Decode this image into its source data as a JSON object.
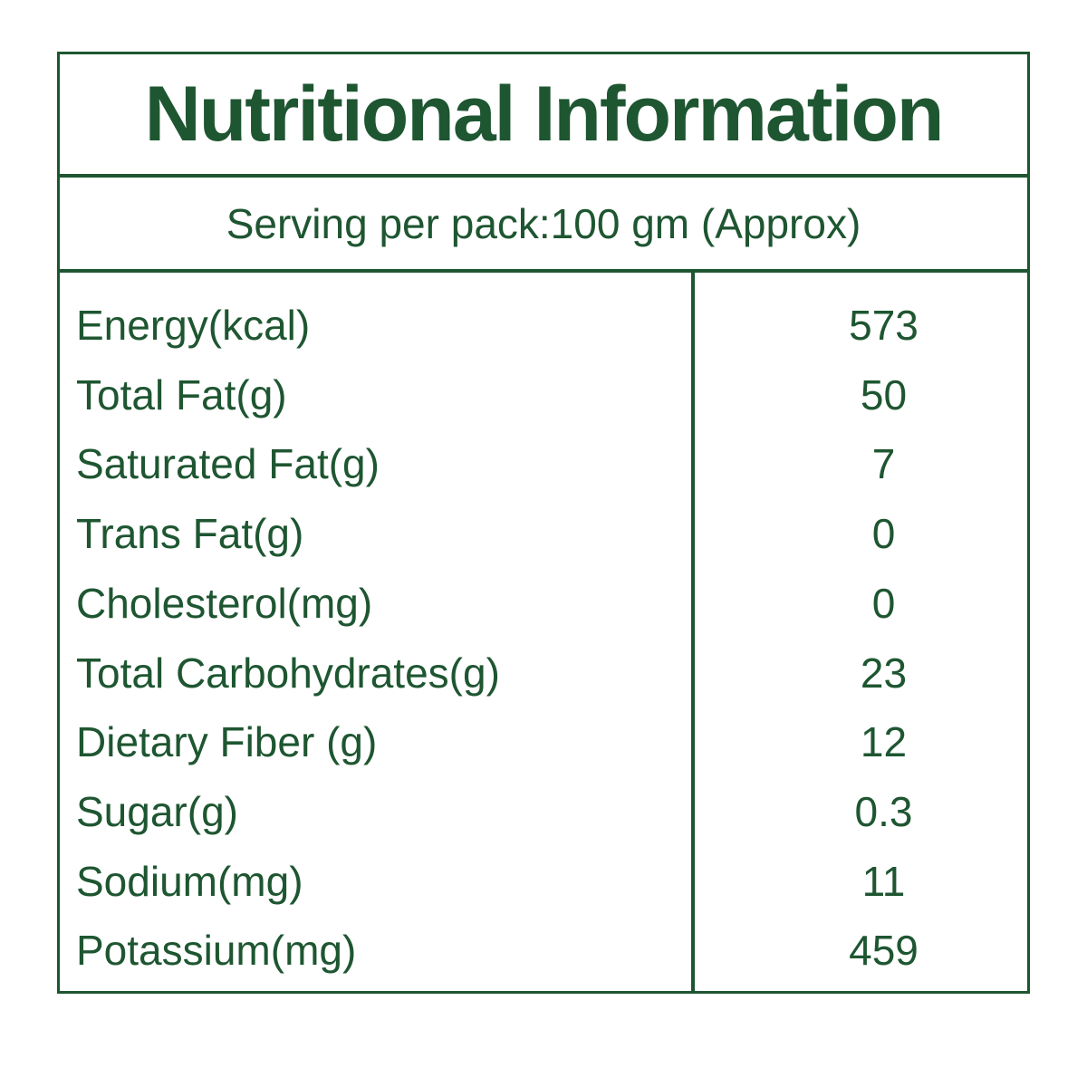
{
  "label": {
    "title": "Nutritional Information",
    "serving_line": "Serving per pack:100 gm (Approx)",
    "columns": {
      "name_header": "",
      "value_header": ""
    },
    "rows": [
      {
        "name": "Energy(kcal)",
        "value": "573"
      },
      {
        "name": "Total Fat(g)",
        "value": "50"
      },
      {
        "name": "Saturated Fat(g)",
        "value": "7"
      },
      {
        "name": "Trans Fat(g)",
        "value": "0"
      },
      {
        "name": "Cholesterol(mg)",
        "value": "0"
      },
      {
        "name": "Total Carbohydrates(g)",
        "value": "23"
      },
      {
        "name": "Dietary Fiber (g)",
        "value": "12"
      },
      {
        "name": "Sugar(g)",
        "value": "0.3"
      },
      {
        "name": "Sodium(mg)",
        "value": "11"
      },
      {
        "name": "Potassium(mg)",
        "value": "459"
      }
    ],
    "colors": {
      "text_green": "#1e5631",
      "border_green": "#1e5631",
      "background": "#ffffff"
    }
  }
}
